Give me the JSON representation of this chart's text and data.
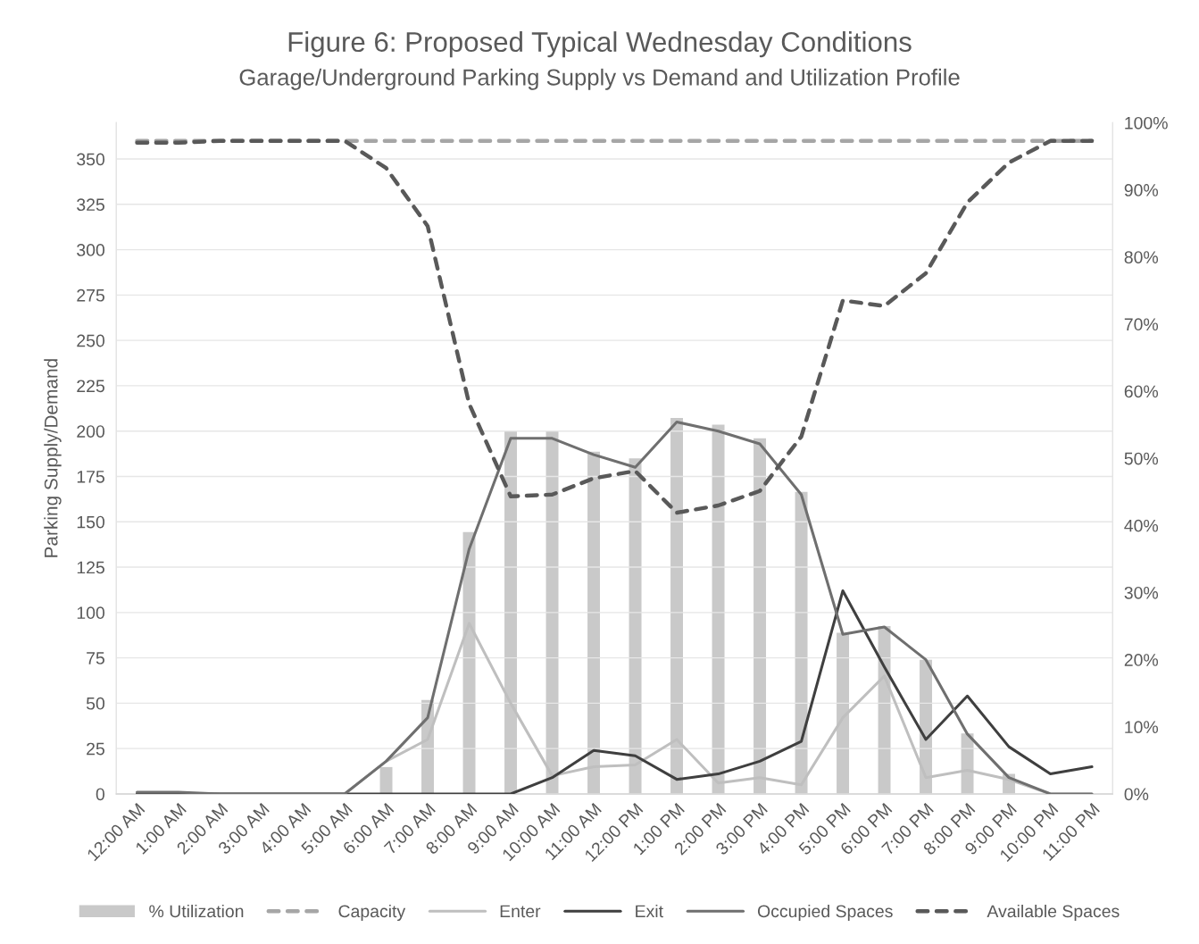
{
  "chart_data": {
    "type": "line",
    "title": "Figure 6: Proposed Typical Wednesday Conditions",
    "subtitle": "Garage/Underground Parking Supply vs Demand and Utilization Profile",
    "ylabel": "Parking Supply/Demand",
    "categories": [
      "12:00 AM",
      "1:00 AM",
      "2:00 AM",
      "3:00 AM",
      "4:00 AM",
      "5:00 AM",
      "6:00 AM",
      "7:00 AM",
      "8:00 AM",
      "9:00 AM",
      "10:00 AM",
      "11:00 AM",
      "12:00 PM",
      "1:00 PM",
      "2:00 PM",
      "3:00 PM",
      "4:00 PM",
      "5:00 PM",
      "6:00 PM",
      "7:00 PM",
      "8:00 PM",
      "9:00 PM",
      "10:00 PM",
      "11:00 PM"
    ],
    "series": [
      {
        "name": "% Utilization",
        "type": "bar",
        "axis": "y2",
        "color": "#c9c9c9",
        "values": [
          0,
          0,
          0,
          0,
          0,
          0,
          4,
          14,
          39,
          54,
          54,
          51,
          50,
          56,
          55,
          53,
          45,
          24,
          25,
          20,
          9,
          3,
          0,
          0
        ]
      },
      {
        "name": "Capacity",
        "color": "#a6a6a6",
        "line_style": "dashed",
        "values": [
          360,
          360,
          360,
          360,
          360,
          360,
          360,
          360,
          360,
          360,
          360,
          360,
          360,
          360,
          360,
          360,
          360,
          360,
          360,
          360,
          360,
          360,
          360,
          360
        ]
      },
      {
        "name": "Enter",
        "color": "#bfbfbf",
        "values": [
          0,
          0,
          0,
          0,
          0,
          0,
          18,
          30,
          94,
          50,
          10,
          15,
          16,
          30,
          6,
          9,
          5,
          42,
          65,
          9,
          13,
          8,
          0,
          0
        ]
      },
      {
        "name": "Exit",
        "color": "#3f3f3f",
        "values": [
          0,
          0,
          0,
          0,
          0,
          0,
          0,
          0,
          0,
          0,
          9,
          24,
          21,
          8,
          11,
          18,
          29,
          112,
          70,
          30,
          54,
          26,
          11,
          15
        ]
      },
      {
        "name": "Occupied Spaces",
        "color": "#6f6f6f",
        "values": [
          1,
          1,
          0,
          0,
          0,
          0,
          18,
          42,
          135,
          196,
          196,
          187,
          180,
          205,
          200,
          193,
          165,
          88,
          92,
          74,
          33,
          9,
          0,
          0
        ]
      },
      {
        "name": "Available Spaces",
        "color": "#595959",
        "line_style": "dashed",
        "values": [
          359,
          359,
          360,
          360,
          360,
          360,
          345,
          313,
          215,
          164,
          165,
          174,
          178,
          155,
          159,
          167,
          197,
          272,
          269,
          287,
          326,
          348,
          360,
          360
        ]
      }
    ],
    "ylim": [
      0,
      370
    ],
    "yticks": [
      0,
      25,
      50,
      75,
      100,
      125,
      150,
      175,
      200,
      225,
      250,
      275,
      300,
      325,
      350
    ],
    "y2lim": [
      0,
      100
    ],
    "y2ticks": [
      {
        "value": 0,
        "label": "0%"
      },
      {
        "value": 10,
        "label": "10%"
      },
      {
        "value": 20,
        "label": "20%"
      },
      {
        "value": 30,
        "label": "30%"
      },
      {
        "value": 40,
        "label": "40%"
      },
      {
        "value": 50,
        "label": "50%"
      },
      {
        "value": 60,
        "label": "60%"
      },
      {
        "value": 70,
        "label": "70%"
      },
      {
        "value": 80,
        "label": "80%"
      },
      {
        "value": 90,
        "label": "90%"
      },
      {
        "value": 100,
        "label": "100%"
      }
    ],
    "grid": "y",
    "legend": "bottom"
  }
}
